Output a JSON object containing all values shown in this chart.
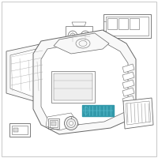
{
  "background_color": "#ffffff",
  "border_color": "#c8c8c8",
  "highlight_color": "#3399aa",
  "line_color": "#666666",
  "light_line_color": "#aaaaaa",
  "fill_color": "#f8f8f8",
  "figsize": [
    2.0,
    2.0
  ],
  "dpi": 100
}
